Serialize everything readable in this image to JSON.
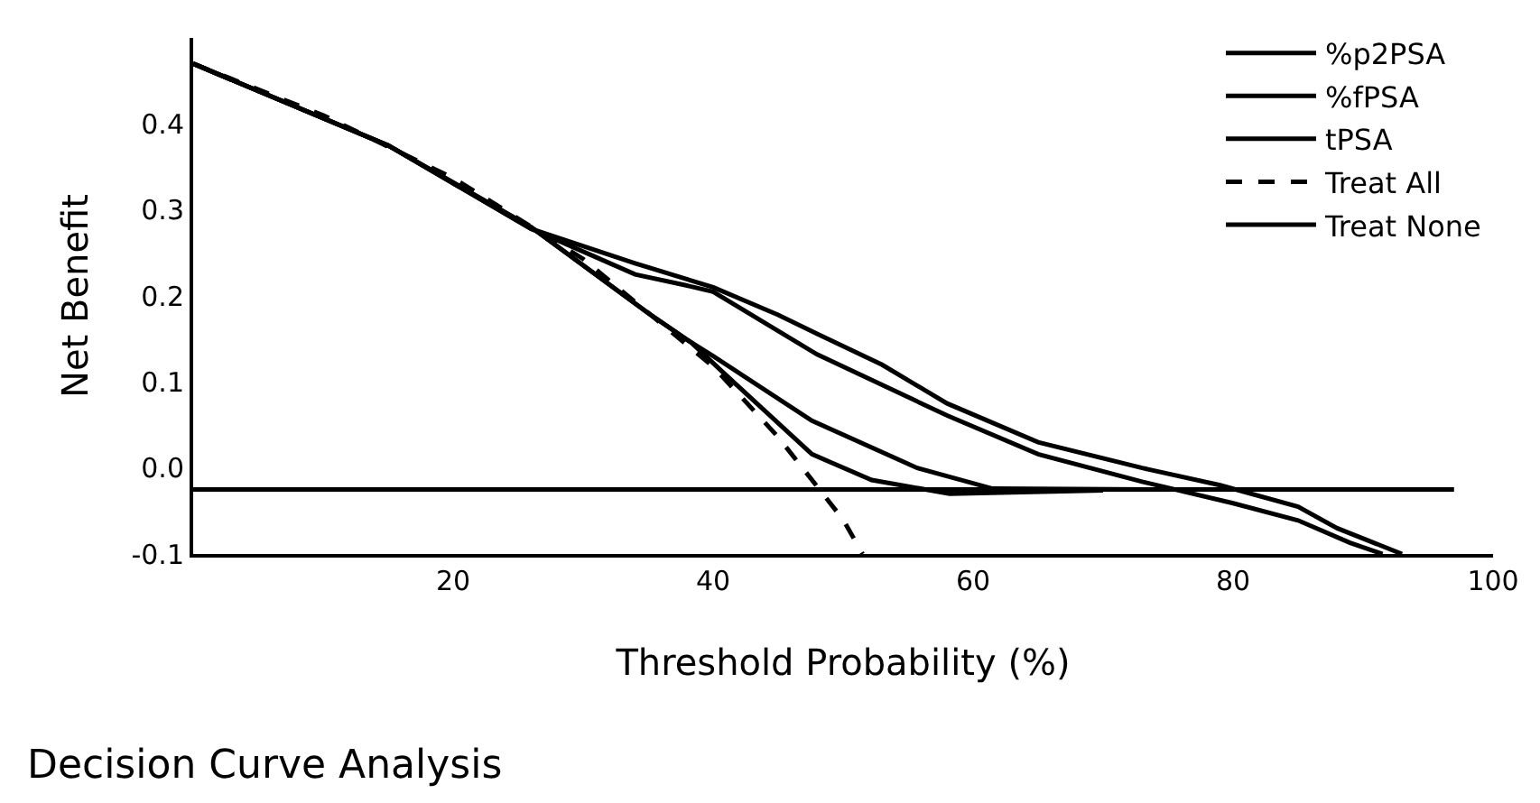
{
  "chart_data": {
    "type": "line",
    "xlabel": "Threshold Probability (%)",
    "ylabel": "Net Benefit",
    "annotations": [
      "Decision Curve Analysis"
    ],
    "xlim": [
      0,
      100
    ],
    "xticks": [
      20,
      40,
      60,
      80,
      100
    ],
    "ylim": [
      -0.1,
      0.5
    ],
    "yticks": [
      {
        "value": -0.1,
        "label": "-0.1"
      },
      {
        "value": 0,
        "label": "0.0"
      },
      0.1,
      0.2,
      0.3,
      0.4
    ],
    "legend": "top right",
    "marker": "none",
    "series": [
      {
        "color": "#000000",
        "line_style": "solid",
        "x": [
          0,
          15,
          26,
          34,
          40,
          45,
          48,
          53,
          58,
          65,
          73,
          79,
          85,
          88,
          93
        ],
        "values": [
          0.47,
          0.375,
          0.278,
          0.238,
          0.21,
          0.178,
          0.156,
          0.12,
          0.075,
          0.03,
          0,
          -0.02,
          -0.045,
          -0.07,
          -0.1
        ]
      },
      {
        "name": "%p2PSA",
        "color": "#000000",
        "line_style": "solid",
        "x": [
          0,
          15,
          26,
          31,
          34,
          38,
          40,
          48,
          58,
          65,
          73,
          80,
          85,
          89,
          91.5
        ],
        "values": [
          0.47,
          0.375,
          0.278,
          0.245,
          0.225,
          0.212,
          0.205,
          0.132,
          0.061,
          0.016,
          -0.016,
          -0.041,
          -0.061,
          -0.087,
          -0.1
        ]
      },
      {
        "name": "%fPSA",
        "color": "#000000",
        "line_style": "solid",
        "x": [
          0,
          15,
          26,
          35,
          38.3,
          40,
          47.6,
          55.7,
          61.5,
          75
        ],
        "values": [
          0.47,
          0.375,
          0.28,
          0.18,
          0.146,
          0.13,
          0.055,
          0.0,
          -0.024,
          -0.025
        ]
      },
      {
        "name": "tPSA",
        "color": "#000000",
        "line_style": "solid",
        "x": [
          0,
          15,
          26,
          35,
          38.3,
          40.7,
          47.6,
          52.2,
          58.2,
          70
        ],
        "values": [
          0.47,
          0.375,
          0.28,
          0.18,
          0.146,
          0.112,
          0.016,
          -0.014,
          -0.03,
          -0.026
        ]
      },
      {
        "name": "Treat All",
        "color": "#000000",
        "line_style": "dashed",
        "x": [
          0,
          10,
          20,
          30,
          40,
          45,
          50,
          51.5
        ],
        "values": [
          0.47,
          0.41,
          0.337,
          0.243,
          0.118,
          0.036,
          -0.06,
          -0.1
        ]
      },
      {
        "name": "Treat None",
        "color": "#000000",
        "line_style": "solid",
        "x": [
          0,
          97
        ],
        "values": [
          -0.025,
          -0.025
        ]
      }
    ]
  }
}
